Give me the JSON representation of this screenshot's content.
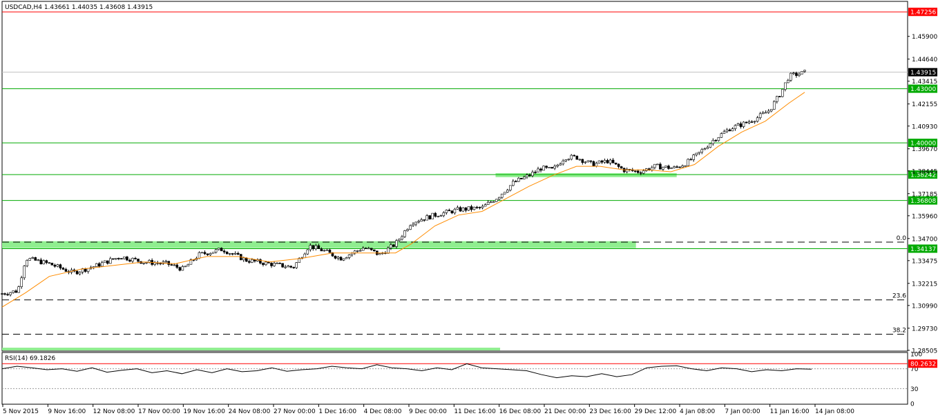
{
  "chart_data": {
    "type": "candlestick",
    "symbol_header": "USDCAD,H4  1.43661 1.44035 1.43608 1.43915",
    "price_axis": {
      "min": 1.285,
      "max": 1.478,
      "ticks": [
        "1.45900",
        "1.44640",
        "1.43415",
        "1.42155",
        "1.40930",
        "1.39670",
        "1.38445",
        "1.37185",
        "1.35960",
        "1.34700",
        "1.33475",
        "1.32215",
        "1.30990",
        "1.29730",
        "1.28505"
      ]
    },
    "time_axis": {
      "labels": [
        "5 Nov 2015",
        "9 Nov 16:00",
        "12 Nov 08:00",
        "17 Nov 00:00",
        "19 Nov 16:00",
        "24 Nov 08:00",
        "27 Nov 00:00",
        "1 Dec 16:00",
        "4 Dec 08:00",
        "9 Dec 00:00",
        "11 Dec 16:00",
        "16 Dec 08:00",
        "21 Dec 00:00",
        "23 Dec 16:00",
        "29 Dec 12:00",
        "4 Jan 08:00",
        "7 Jan 00:00",
        "11 Jan 16:00",
        "14 Jan 08:00"
      ]
    },
    "current_price": {
      "value": 1.43915,
      "label": "1.43915"
    },
    "horizontal_levels": [
      {
        "value": 1.47256,
        "label": "1.47256",
        "color": "#ff0000"
      },
      {
        "value": 1.43,
        "label": "1.43000",
        "color": "#00aa00"
      },
      {
        "value": 1.4,
        "label": "1.40000",
        "color": "#00aa00"
      },
      {
        "value": 1.38242,
        "label": "1.38242",
        "color": "#00aa00"
      },
      {
        "value": 1.36808,
        "label": "1.36808",
        "color": "#00aa00"
      },
      {
        "value": 1.34137,
        "label": "1.34137",
        "color": "#00aa00"
      }
    ],
    "fibonacci_levels": [
      {
        "value": 1.345,
        "label": "0.0"
      },
      {
        "value": 1.313,
        "label": "23.6"
      },
      {
        "value": 1.294,
        "label": "38.2"
      }
    ],
    "support_zones": [
      {
        "low": 1.3417,
        "high": 1.3455,
        "start": 0,
        "end": 0.7
      },
      {
        "low": 1.381,
        "high": 1.3832,
        "start": 0.545,
        "end": 0.745
      },
      {
        "low": 1.285,
        "high": 1.2865,
        "start": 0,
        "end": 0.55
      }
    ],
    "close_path": [
      [
        0,
        1.3165
      ],
      [
        0.02,
        1.318
      ],
      [
        0.03,
        1.336
      ],
      [
        0.06,
        1.333
      ],
      [
        0.09,
        1.328
      ],
      [
        0.12,
        1.332
      ],
      [
        0.15,
        1.337
      ],
      [
        0.18,
        1.334
      ],
      [
        0.21,
        1.333
      ],
      [
        0.23,
        1.33
      ],
      [
        0.25,
        1.338
      ],
      [
        0.28,
        1.341
      ],
      [
        0.31,
        1.335
      ],
      [
        0.34,
        1.333
      ],
      [
        0.37,
        1.331
      ],
      [
        0.39,
        1.343
      ],
      [
        0.41,
        1.34
      ],
      [
        0.43,
        1.336
      ],
      [
        0.46,
        1.342
      ],
      [
        0.48,
        1.338
      ],
      [
        0.5,
        1.344
      ],
      [
        0.52,
        1.356
      ],
      [
        0.55,
        1.36
      ],
      [
        0.58,
        1.363
      ],
      [
        0.61,
        1.364
      ],
      [
        0.63,
        1.37
      ],
      [
        0.65,
        1.378
      ],
      [
        0.67,
        1.382
      ],
      [
        0.685,
        1.386
      ],
      [
        0.7,
        1.385
      ],
      [
        0.715,
        1.392
      ],
      [
        0.73,
        1.392
      ],
      [
        0.75,
        1.388
      ],
      [
        0.77,
        1.39
      ],
      [
        0.79,
        1.385
      ],
      [
        0.81,
        1.384
      ],
      [
        0.83,
        1.387
      ],
      [
        0.855,
        1.386
      ],
      [
        0.87,
        1.389
      ],
      [
        0.885,
        1.394
      ],
      [
        0.905,
        1.402
      ],
      [
        0.925,
        1.408
      ],
      [
        0.945,
        1.411
      ],
      [
        0.96,
        1.414
      ],
      [
        0.975,
        1.418
      ],
      [
        0.99,
        1.428
      ],
      [
        1.0,
        1.437
      ],
      [
        1.02,
        1.439
      ]
    ],
    "moving_average_path": [
      [
        0,
        1.309
      ],
      [
        0.03,
        1.317
      ],
      [
        0.06,
        1.326
      ],
      [
        0.1,
        1.33
      ],
      [
        0.14,
        1.332
      ],
      [
        0.18,
        1.334
      ],
      [
        0.22,
        1.333
      ],
      [
        0.26,
        1.337
      ],
      [
        0.3,
        1.337
      ],
      [
        0.34,
        1.334
      ],
      [
        0.38,
        1.336
      ],
      [
        0.42,
        1.339
      ],
      [
        0.46,
        1.339
      ],
      [
        0.5,
        1.339
      ],
      [
        0.52,
        1.344
      ],
      [
        0.55,
        1.354
      ],
      [
        0.58,
        1.36
      ],
      [
        0.61,
        1.362
      ],
      [
        0.64,
        1.369
      ],
      [
        0.67,
        1.376
      ],
      [
        0.7,
        1.382
      ],
      [
        0.73,
        1.387
      ],
      [
        0.76,
        1.387
      ],
      [
        0.79,
        1.385
      ],
      [
        0.82,
        1.385
      ],
      [
        0.85,
        1.384
      ],
      [
        0.88,
        1.388
      ],
      [
        0.91,
        1.398
      ],
      [
        0.94,
        1.406
      ],
      [
        0.97,
        1.412
      ],
      [
        1.0,
        1.422
      ],
      [
        1.02,
        1.428
      ]
    ],
    "rsi": {
      "header": "RSI(14) 69.1826",
      "period": 14,
      "value": 69.1826,
      "axis_labels": [
        "100",
        "70",
        "30",
        "0"
      ],
      "overbought_label": "80.2632",
      "levels": [
        80.2632,
        70,
        30
      ],
      "values_sampled": [
        70,
        75,
        72,
        68,
        70,
        65,
        72,
        63,
        67,
        70,
        62,
        66,
        60,
        68,
        62,
        70,
        64,
        66,
        72,
        65,
        68,
        70,
        75,
        72,
        70,
        78,
        72,
        70,
        66,
        72,
        68,
        80,
        72,
        70,
        68,
        66,
        58,
        52,
        56,
        54,
        60,
        54,
        58,
        72,
        75,
        76,
        70,
        66,
        72,
        70,
        64,
        68,
        66,
        70,
        69
      ]
    },
    "colors": {
      "background": "#ffffff",
      "candle_bull": "#ffffff",
      "candle_bear": "#000000",
      "candle_outline": "#000000",
      "moving_average": "#ff8c00",
      "support_level": "#00aa00",
      "zone_fill": "#90ee90",
      "resistance_level": "#ff0000",
      "current_price_line": "#c0c0c0",
      "rsi_line": "#000000"
    }
  }
}
